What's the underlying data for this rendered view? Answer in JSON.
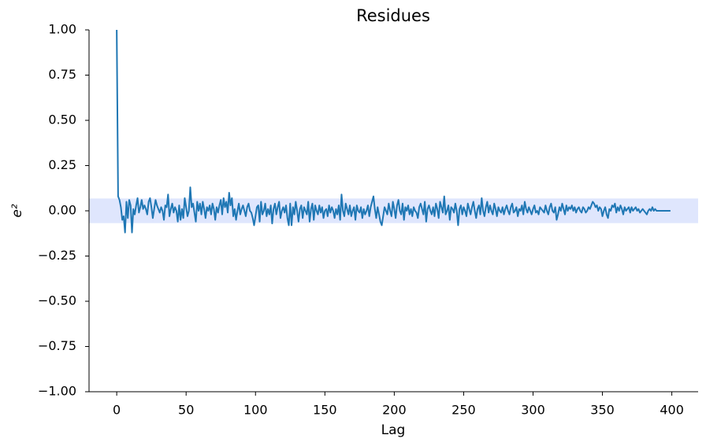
{
  "chart_data": {
    "type": "line",
    "title": "Residues",
    "xlabel": "Lag",
    "ylabel": "e²",
    "color": "#1f77b4",
    "band": [
      -0.068,
      0.068
    ],
    "band_color": "#dfe6fd",
    "xlim": [
      -19.95,
      418.95
    ],
    "xticks": [
      0,
      50,
      100,
      150,
      200,
      250,
      300,
      350,
      400
    ],
    "ylim": [
      -1,
      1
    ],
    "yticks": [
      {
        "value": -1,
        "label": "−1.00"
      },
      {
        "value": -0.75,
        "label": "−0.75"
      },
      {
        "value": -0.5,
        "label": "−0.50"
      },
      {
        "value": -0.25,
        "label": "−0.25"
      },
      {
        "value": 0,
        "label": "0.00"
      },
      {
        "value": 0.25,
        "label": "0.25"
      },
      {
        "value": 0.5,
        "label": "0.50"
      },
      {
        "value": 0.75,
        "label": "0.75"
      },
      {
        "value": 1,
        "label": "1.00"
      }
    ],
    "x": [
      0,
      1,
      2,
      3,
      4,
      5,
      6,
      7,
      8,
      9,
      10,
      11,
      12,
      13,
      14,
      15,
      16,
      17,
      18,
      19,
      20,
      21,
      22,
      23,
      24,
      25,
      26,
      27,
      28,
      29,
      30,
      31,
      32,
      33,
      34,
      35,
      36,
      37,
      38,
      39,
      40,
      41,
      42,
      43,
      44,
      45,
      46,
      47,
      48,
      49,
      50,
      51,
      52,
      53,
      54,
      55,
      56,
      57,
      58,
      59,
      60,
      61,
      62,
      63,
      64,
      65,
      66,
      67,
      68,
      69,
      70,
      71,
      72,
      73,
      74,
      75,
      76,
      77,
      78,
      79,
      80,
      81,
      82,
      83,
      84,
      85,
      86,
      87,
      88,
      89,
      90,
      91,
      92,
      93,
      94,
      95,
      96,
      97,
      98,
      99,
      100,
      101,
      102,
      103,
      104,
      105,
      106,
      107,
      108,
      109,
      110,
      111,
      112,
      113,
      114,
      115,
      116,
      117,
      118,
      119,
      120,
      121,
      122,
      123,
      124,
      125,
      126,
      127,
      128,
      129,
      130,
      131,
      132,
      133,
      134,
      135,
      136,
      137,
      138,
      139,
      140,
      141,
      142,
      143,
      144,
      145,
      146,
      147,
      148,
      149,
      150,
      151,
      152,
      153,
      154,
      155,
      156,
      157,
      158,
      159,
      160,
      161,
      162,
      163,
      164,
      165,
      166,
      167,
      168,
      169,
      170,
      171,
      172,
      173,
      174,
      175,
      176,
      177,
      178,
      179,
      180,
      181,
      182,
      183,
      184,
      185,
      186,
      187,
      188,
      189,
      190,
      191,
      192,
      193,
      194,
      195,
      196,
      197,
      198,
      199,
      200,
      201,
      202,
      203,
      204,
      205,
      206,
      207,
      208,
      209,
      210,
      211,
      212,
      213,
      214,
      215,
      216,
      217,
      218,
      219,
      220,
      221,
      222,
      223,
      224,
      225,
      226,
      227,
      228,
      229,
      230,
      231,
      232,
      233,
      234,
      235,
      236,
      237,
      238,
      239,
      240,
      241,
      242,
      243,
      244,
      245,
      246,
      247,
      248,
      249,
      250,
      251,
      252,
      253,
      254,
      255,
      256,
      257,
      258,
      259,
      260,
      261,
      262,
      263,
      264,
      265,
      266,
      267,
      268,
      269,
      270,
      271,
      272,
      273,
      274,
      275,
      276,
      277,
      278,
      279,
      280,
      281,
      282,
      283,
      284,
      285,
      286,
      287,
      288,
      289,
      290,
      291,
      292,
      293,
      294,
      295,
      296,
      297,
      298,
      299,
      300,
      301,
      302,
      303,
      304,
      305,
      306,
      307,
      308,
      309,
      310,
      311,
      312,
      313,
      314,
      315,
      316,
      317,
      318,
      319,
      320,
      321,
      322,
      323,
      324,
      325,
      326,
      327,
      328,
      329,
      330,
      331,
      332,
      333,
      334,
      335,
      336,
      337,
      338,
      339,
      340,
      341,
      342,
      343,
      344,
      345,
      346,
      347,
      348,
      349,
      350,
      351,
      352,
      353,
      354,
      355,
      356,
      357,
      358,
      359,
      360,
      361,
      362,
      363,
      364,
      365,
      366,
      367,
      368,
      369,
      370,
      371,
      372,
      373,
      374,
      375,
      376,
      377,
      378,
      379,
      380,
      381,
      382,
      383,
      384,
      385,
      386,
      387,
      388,
      389,
      390,
      391,
      392,
      393,
      394,
      395,
      396,
      397,
      398,
      399
    ],
    "values": [
      1.0,
      0.08,
      0.06,
      0.02,
      -0.05,
      -0.03,
      -0.12,
      0.05,
      -0.04,
      0.06,
      0.03,
      -0.12,
      0.01,
      -0.02,
      0.03,
      0.07,
      -0.01,
      0.02,
      0.06,
      0.01,
      0.03,
      0.01,
      -0.02,
      0.05,
      0.07,
      0.02,
      -0.04,
      0.01,
      0.06,
      0.03,
      0.01,
      -0.01,
      0.02,
      0.0,
      -0.05,
      0.03,
      0.02,
      0.09,
      -0.03,
      0.01,
      0.04,
      -0.01,
      0.02,
      0.0,
      -0.06,
      0.03,
      -0.05,
      0.01,
      -0.04,
      0.07,
      0.02,
      -0.03,
      0.0,
      0.13,
      0.02,
      0.04,
      -0.01,
      -0.06,
      0.05,
      0.0,
      0.04,
      -0.02,
      0.05,
      0.01,
      -0.04,
      0.02,
      0.0,
      0.03,
      -0.02,
      0.04,
      0.01,
      -0.05,
      0.02,
      -0.01,
      0.03,
      0.06,
      -0.02,
      0.07,
      0.02,
      0.05,
      -0.01,
      0.1,
      0.03,
      0.07,
      -0.03,
      0.01,
      -0.05,
      0.0,
      0.04,
      -0.02,
      0.01,
      0.03,
      0.0,
      -0.03,
      0.02,
      0.04,
      0.0,
      -0.01,
      -0.04,
      -0.08,
      -0.03,
      0.02,
      0.03,
      -0.06,
      0.05,
      -0.02,
      0.0,
      0.04,
      -0.03,
      0.01,
      -0.02,
      0.03,
      -0.07,
      0.01,
      0.04,
      -0.02,
      0.02,
      0.05,
      -0.04,
      0.0,
      0.02,
      -0.01,
      0.03,
      -0.04,
      -0.08,
      0.04,
      -0.08,
      0.02,
      -0.02,
      0.05,
      0.0,
      -0.06,
      0.01,
      0.03,
      -0.04,
      0.02,
      0.0,
      -0.02,
      0.05,
      -0.06,
      0.01,
      0.04,
      -0.05,
      0.03,
      0.0,
      -0.02,
      0.03,
      -0.01,
      0.02,
      -0.04,
      0.0,
      0.01,
      -0.03,
      0.03,
      -0.01,
      0.02,
      0.0,
      -0.04,
      0.01,
      -0.02,
      0.03,
      -0.05,
      0.09,
      0.0,
      -0.03,
      0.04,
      0.01,
      -0.02,
      0.03,
      -0.03,
      0.0,
      0.02,
      -0.05,
      0.03,
      0.0,
      -0.01,
      0.02,
      -0.04,
      0.01,
      -0.02,
      0.0,
      0.03,
      -0.03,
      0.02,
      0.05,
      0.08,
      0.01,
      -0.04,
      0.02,
      -0.02,
      -0.06,
      -0.08,
      -0.03,
      0.02,
      0.0,
      -0.02,
      0.04,
      0.0,
      -0.03,
      0.05,
      0.01,
      -0.04,
      0.03,
      0.06,
      0.0,
      -0.02,
      0.04,
      -0.05,
      0.02,
      0.0,
      0.03,
      -0.02,
      0.01,
      -0.03,
      0.02,
      0.0,
      -0.01,
      -0.04,
      0.02,
      0.04,
      0.01,
      -0.02,
      0.05,
      -0.06,
      0.01,
      0.03,
      0.0,
      -0.02,
      0.02,
      -0.03,
      0.04,
      0.01,
      -0.04,
      0.05,
      0.02,
      -0.01,
      0.08,
      -0.02,
      0.0,
      0.03,
      -0.05,
      0.02,
      0.01,
      -0.01,
      0.04,
      0.0,
      -0.08,
      0.01,
      0.03,
      -0.02,
      0.02,
      0.0,
      -0.03,
      0.04,
      0.01,
      -0.02,
      0.02,
      0.05,
      0.0,
      -0.04,
      0.01,
      0.03,
      -0.02,
      0.07,
      0.0,
      -0.03,
      0.02,
      0.05,
      -0.01,
      0.03,
      0.0,
      -0.02,
      0.04,
      0.01,
      -0.03,
      0.02,
      0.0,
      -0.01,
      0.02,
      -0.02,
      0.01,
      0.03,
      0.0,
      -0.02,
      0.02,
      0.04,
      -0.01,
      0.0,
      0.02,
      -0.03,
      0.01,
      0.0,
      0.03,
      -0.02,
      0.05,
      0.01,
      -0.01,
      0.02,
      0.0,
      -0.02,
      0.01,
      0.03,
      -0.01,
      0.0,
      -0.02,
      0.02,
      0.01,
      0.0,
      -0.01,
      0.03,
      0.0,
      -0.02,
      0.02,
      0.04,
      0.0,
      -0.01,
      0.02,
      -0.05,
      -0.02,
      0.02,
      0.0,
      0.04,
      0.01,
      -0.02,
      0.03,
      0.0,
      0.02,
      0.01,
      0.03,
      0.0,
      0.02,
      -0.01,
      0.01,
      0.02,
      0.0,
      -0.01,
      0.02,
      0.01,
      -0.01,
      0.0,
      0.02,
      0.01,
      0.03,
      0.05,
      0.04,
      0.02,
      0.03,
      0.0,
      0.02,
      0.01,
      -0.03,
      0.0,
      0.02,
      -0.02,
      -0.04,
      0.01,
      0.0,
      0.03,
      0.02,
      0.04,
      -0.01,
      0.02,
      0.0,
      0.03,
      0.01,
      -0.02,
      0.02,
      0.0,
      0.01,
      0.02,
      -0.01,
      0.02,
      0.0,
      0.01,
      0.02,
      0.0,
      0.01,
      -0.01,
      0.0,
      0.01,
      0.0,
      -0.01,
      -0.02,
      0.0,
      0.01,
      0.0,
      0.02,
      0.0,
      0.01,
      0.0,
      0.0,
      0.0,
      0.0,
      0.0,
      0.0,
      0.0,
      0.0,
      0.0,
      0.0,
      0.0
    ]
  }
}
